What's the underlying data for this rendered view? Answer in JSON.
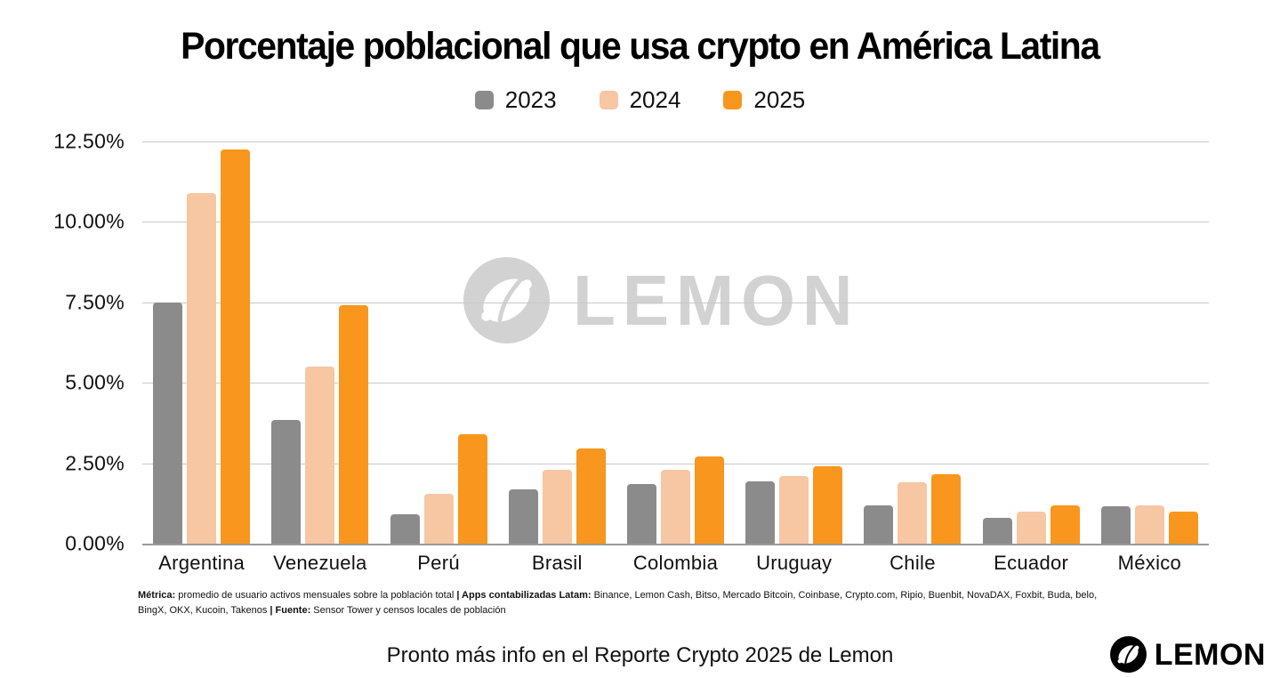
{
  "title": "Porcentaje poblacional que usa crypto en América Latina",
  "watermark": {
    "text": "LEMON"
  },
  "chart_data": {
    "type": "bar",
    "title": "Porcentaje poblacional que usa crypto en América Latina",
    "categories": [
      "Argentina",
      "Venezuela",
      "Perú",
      "Brasil",
      "Colombia",
      "Uruguay",
      "Chile",
      "Ecuador",
      "México"
    ],
    "series": [
      {
        "name": "2023",
        "color": "#8B8B8B",
        "values": [
          7.5,
          3.85,
          0.9,
          1.7,
          1.85,
          1.95,
          1.2,
          0.8,
          1.15
        ]
      },
      {
        "name": "2024",
        "color": "#F7C6A3",
        "values": [
          10.9,
          5.5,
          1.55,
          2.3,
          2.3,
          2.1,
          1.9,
          1.0,
          1.2
        ]
      },
      {
        "name": "2025",
        "color": "#F8961D",
        "values": [
          12.25,
          7.4,
          3.4,
          2.95,
          2.7,
          2.4,
          2.15,
          1.2,
          1.0
        ]
      }
    ],
    "xlabel": "",
    "ylabel": "",
    "ylim": [
      0,
      12.5
    ],
    "y_ticks": [
      "12.50%",
      "10.00%",
      "7.50%",
      "5.00%",
      "2.50%",
      "0.00%"
    ],
    "grid": true,
    "legend_position": "top"
  },
  "footnote": {
    "lines": [
      [
        {
          "b": 1,
          "t": "Métrica:"
        },
        {
          "b": 0,
          "t": " promedio de usuario activos mensuales sobre la población total "
        },
        {
          "b": 1,
          "t": "| Apps contabilizadas Latam:"
        },
        {
          "b": 0,
          "t": " Binance, Lemon Cash, Bitso, Mercado Bitcoin, Coinbase, Crypto.com, Ripio, Buenbit, NovaDAX, Foxbit, Buda, belo,"
        }
      ],
      [
        {
          "b": 0,
          "t": "BingX, OKX, Kucoin, Takenos "
        },
        {
          "b": 1,
          "t": "| Fuente:"
        },
        {
          "b": 0,
          "t": " Sensor Tower y censos locales de población"
        }
      ]
    ]
  },
  "footer": {
    "promo": "Pronto más info en el Reporte Crypto 2025 de Lemon",
    "logo_text": "LEMON"
  }
}
